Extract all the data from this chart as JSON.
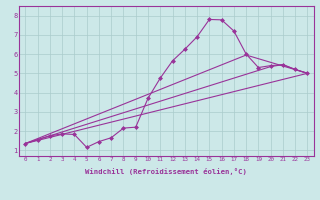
{
  "xlabel": "Windchill (Refroidissement éolien,°C)",
  "ylabel": "",
  "background_color": "#cce8e8",
  "line_color": "#993399",
  "grid_color": "#aacccc",
  "xlim": [
    -0.5,
    23.5
  ],
  "ylim": [
    0.7,
    8.5
  ],
  "xticks": [
    0,
    1,
    2,
    3,
    4,
    5,
    6,
    7,
    8,
    9,
    10,
    11,
    12,
    13,
    14,
    15,
    16,
    17,
    18,
    19,
    20,
    21,
    22,
    23
  ],
  "yticks": [
    1,
    2,
    3,
    4,
    5,
    6,
    7,
    8
  ],
  "lines": [
    {
      "x": [
        0,
        1,
        2,
        3,
        4,
        5,
        6,
        7,
        8,
        9,
        10,
        11,
        12,
        13,
        14,
        15,
        16,
        17,
        18,
        19,
        20,
        21,
        22,
        23
      ],
      "y": [
        1.35,
        1.55,
        1.75,
        1.85,
        1.82,
        1.15,
        1.45,
        1.65,
        2.15,
        2.2,
        3.7,
        4.75,
        5.65,
        6.25,
        6.9,
        7.8,
        7.78,
        7.2,
        6.0,
        5.3,
        5.4,
        5.45,
        5.2,
        5.0
      ],
      "has_markers": true
    },
    {
      "x": [
        0,
        23
      ],
      "y": [
        1.35,
        5.0
      ],
      "has_markers": false
    },
    {
      "x": [
        0,
        20,
        21,
        22,
        23
      ],
      "y": [
        1.35,
        5.35,
        5.45,
        5.2,
        5.0
      ],
      "has_markers": false
    },
    {
      "x": [
        0,
        18,
        23
      ],
      "y": [
        1.35,
        5.95,
        5.0
      ],
      "has_markers": false
    }
  ]
}
